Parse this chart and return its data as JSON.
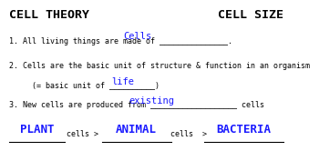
{
  "bg_color": "#ffffff",
  "title_left": "CELL THEORY",
  "title_right": "CELL SIZE",
  "title_color": "#000000",
  "title_fontsize": 9.5,
  "body_color": "#000000",
  "answer_color": "#1a1aff",
  "line1": "1. All living things are made of _______________.",
  "line1_answer": "Cells",
  "line2a": "2. Cells are the basic unit of structure & function in an organism",
  "line2b": "     (= basic unit of __________)",
  "line2b_answer": "life",
  "line3": "3. New cells are produced from ___________________ cells",
  "line3_answer": "existing",
  "plant_answer": "PLANT",
  "animal_answer": "ANIMAL",
  "bacteria_answer": "BACTERIA",
  "cells_text1": "cells >",
  "cells_text2": "cells  >",
  "body_fontsize": 6.0,
  "answer_fontsize": 7.5
}
